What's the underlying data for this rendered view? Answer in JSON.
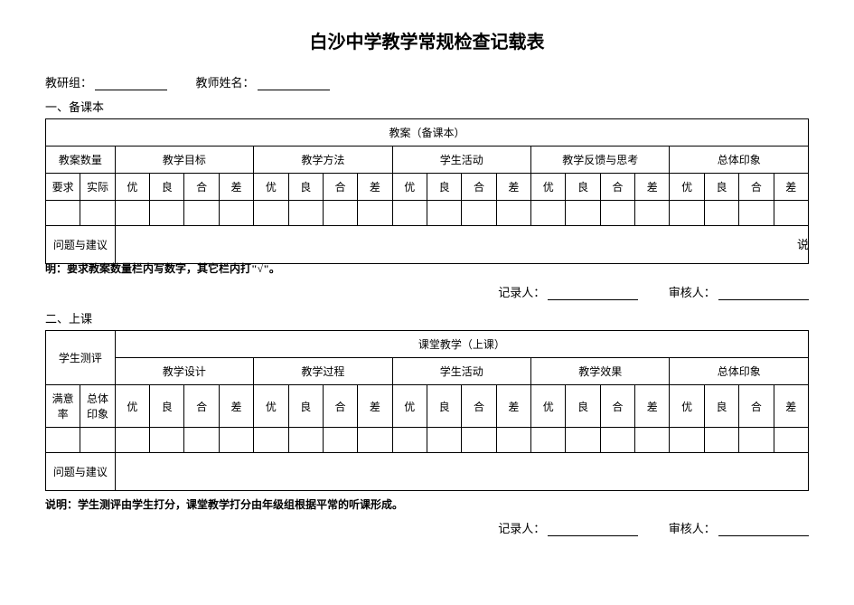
{
  "title": "白沙中学教学常规检查记载表",
  "header": {
    "group_label": "教研组：",
    "teacher_label": "教师姓名："
  },
  "section1": {
    "heading": "一、备课本",
    "table": {
      "super_header": "教案（备课本）",
      "col_groups": [
        "教案数量",
        "教学目标",
        "教学方法",
        "学生活动",
        "教学反馈与思考",
        "总体印象"
      ],
      "count_sub": [
        "要求",
        "实际"
      ],
      "rating_sub": [
        "优",
        "良",
        "合",
        "差"
      ],
      "suggest_label": "问题与建议"
    },
    "trailing_shuo": "说",
    "note": "明：要求教案数量栏内写数字，其它栏内打\"√\"。"
  },
  "signatures": {
    "recorder_label": "记录人：",
    "reviewer_label": "审核人："
  },
  "section2": {
    "heading": "二、上课",
    "table": {
      "eval_header": "学生测评",
      "super_header": "课堂教学（上课）",
      "col_groups": [
        "教学设计",
        "教学过程",
        "学生活动",
        "教学效果",
        "总体印象"
      ],
      "eval_sub": [
        "满意率",
        "总体印象"
      ],
      "rating_sub": [
        "优",
        "良",
        "合",
        "差"
      ],
      "suggest_label": "问题与建议"
    },
    "note": "说明：学生测评由学生打分，课堂教学打分由年级组根据平常的听课形成。"
  },
  "styling": {
    "background_color": "#ffffff",
    "text_color": "#000000",
    "border_color": "#000000",
    "title_fontsize": 20,
    "body_fontsize": 13,
    "cell_fontsize": 12
  }
}
